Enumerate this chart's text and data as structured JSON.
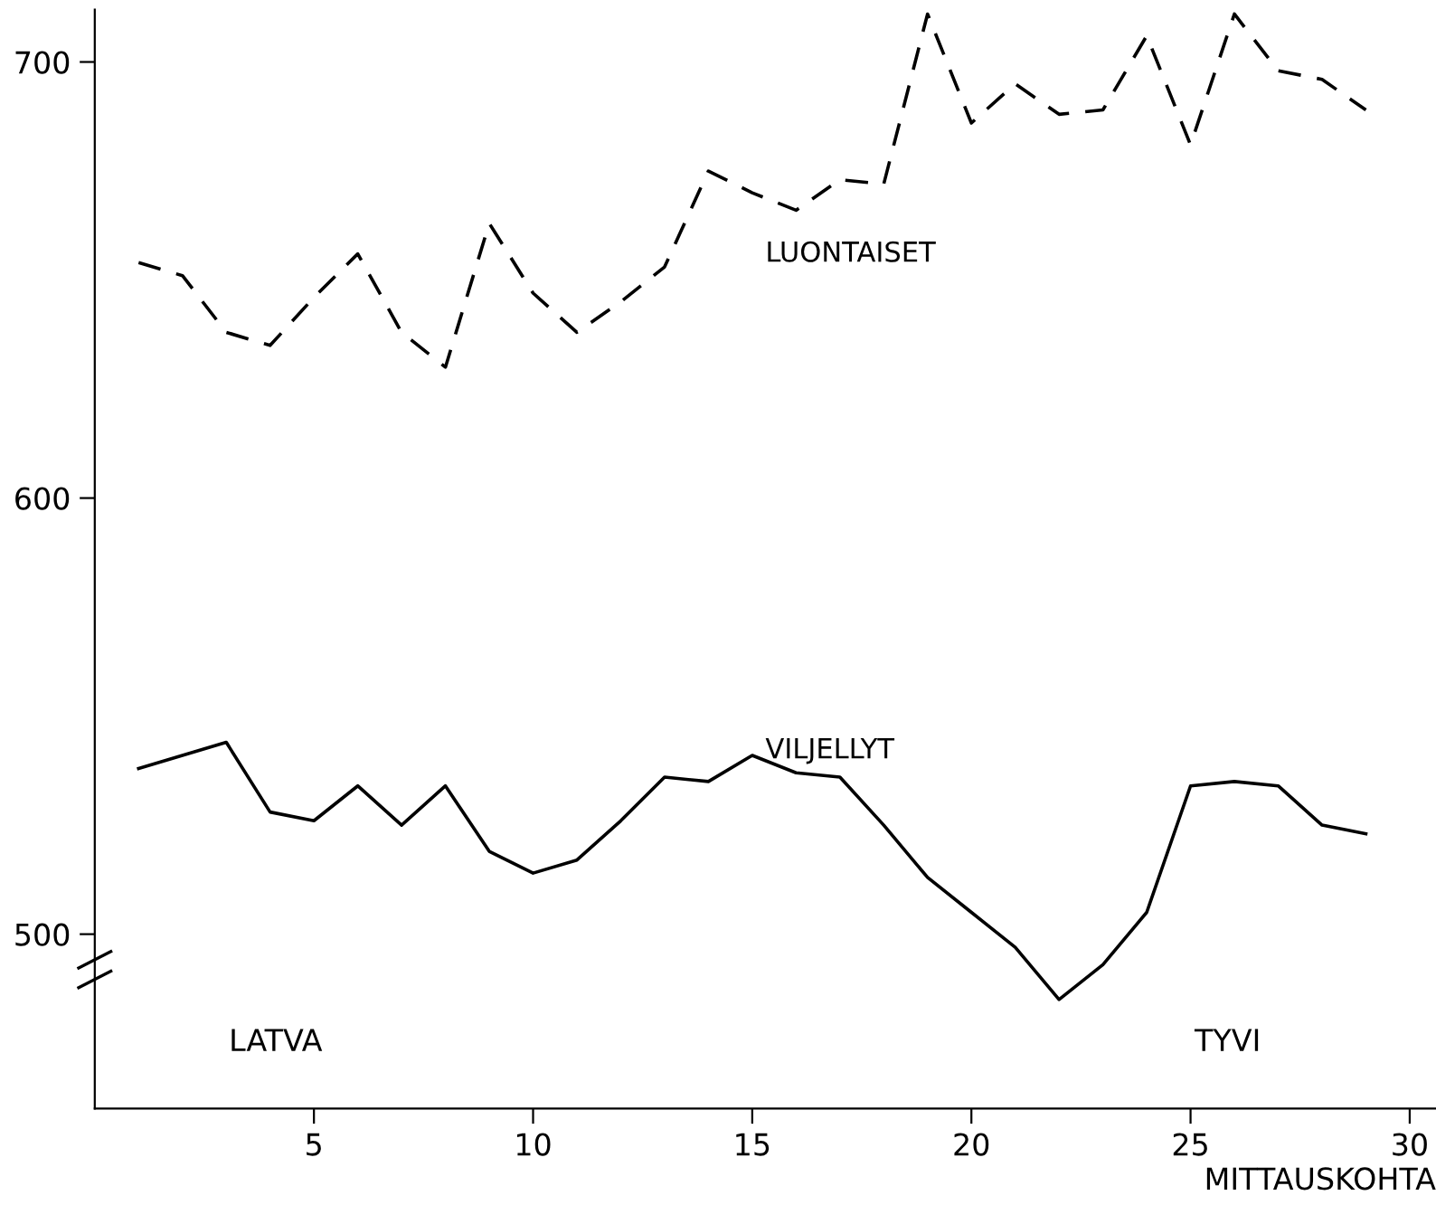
{
  "chart_data": {
    "type": "line",
    "xlabel": "MITTAUSKOHTA",
    "x": [
      1,
      2,
      3,
      4,
      5,
      6,
      7,
      8,
      9,
      10,
      11,
      12,
      13,
      14,
      15,
      16,
      17,
      18,
      19,
      20,
      21,
      22,
      23,
      24,
      25,
      26,
      27,
      28,
      29
    ],
    "series": [
      {
        "name": "LUONTAISET",
        "color": "#000000",
        "line_style": "dashed",
        "values": [
          654,
          651,
          638,
          635,
          646,
          656,
          638,
          630,
          663,
          647,
          638,
          645,
          653,
          675,
          670,
          666,
          673,
          672,
          711,
          686,
          695,
          688,
          689,
          706,
          681,
          711,
          698,
          696,
          689
        ]
      },
      {
        "name": "VILJELLYT",
        "color": "#000000",
        "line_style": "solid",
        "values": [
          538,
          541,
          544,
          528,
          526,
          534,
          525,
          534,
          519,
          514,
          517,
          526,
          536,
          535,
          541,
          537,
          536,
          525,
          513,
          505,
          497,
          485,
          493,
          505,
          534,
          535,
          534,
          525,
          523
        ]
      }
    ],
    "annotations": [
      "LATVA",
      "TYVI"
    ],
    "xlim": [
      0,
      30.6
    ],
    "ylim": [
      460,
      712
    ],
    "xticks": [
      5,
      10,
      15,
      20,
      25,
      30
    ],
    "yticks": [
      500,
      600,
      700
    ],
    "grid": false,
    "legend": false,
    "marker": "none"
  }
}
